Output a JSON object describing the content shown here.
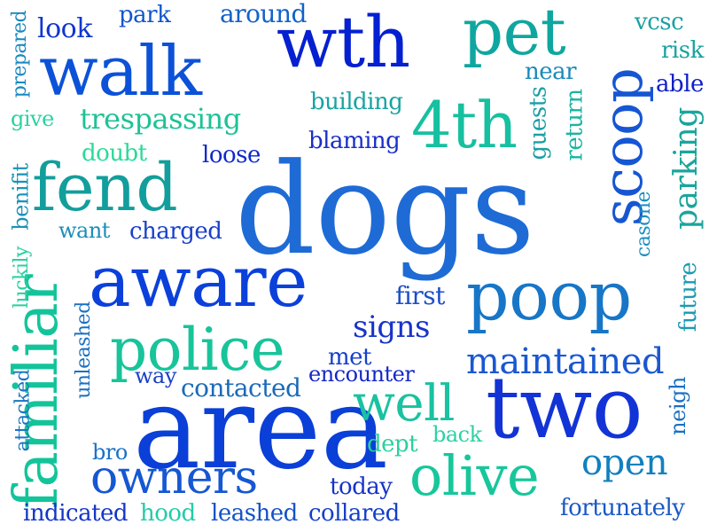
{
  "words": [
    {
      "text": "dogs",
      "color": "#1e6bd6"
    },
    {
      "text": "area",
      "color": "#0a3fd8"
    },
    {
      "text": "aware",
      "color": "#0b40db"
    },
    {
      "text": "walk",
      "color": "#0c52d8"
    },
    {
      "text": "wth",
      "color": "#0520d0"
    },
    {
      "text": "pet",
      "color": "#0fa6a0"
    },
    {
      "text": "two",
      "color": "#1233d6"
    },
    {
      "text": "fend",
      "color": "#129e9c"
    },
    {
      "text": "familiar",
      "color": "#13c49a"
    },
    {
      "text": "police",
      "color": "#18c49a"
    },
    {
      "text": "poop",
      "color": "#1776c7"
    },
    {
      "text": "scoop",
      "color": "#1656d2"
    },
    {
      "text": "4th",
      "color": "#16c0a0"
    },
    {
      "text": "olive",
      "color": "#17c79b"
    },
    {
      "text": "owners",
      "color": "#1657d2"
    },
    {
      "text": "well",
      "color": "#19c2a0"
    },
    {
      "text": "maintained",
      "color": "#1a58d1"
    },
    {
      "text": "open",
      "color": "#1280bf"
    },
    {
      "text": "parking",
      "color": "#1aa59c"
    },
    {
      "text": "trespassing",
      "color": "#1dc297"
    },
    {
      "text": "look",
      "color": "#0f36cf"
    },
    {
      "text": "park",
      "color": "#1055ce"
    },
    {
      "text": "around",
      "color": "#1362c8"
    },
    {
      "text": "vcsc",
      "color": "#1aa0a3"
    },
    {
      "text": "risk",
      "color": "#1aa3a0"
    },
    {
      "text": "able",
      "color": "#1020c8"
    },
    {
      "text": "near",
      "color": "#1a8ab8"
    },
    {
      "text": "guests",
      "color": "#1a9fa6"
    },
    {
      "text": "return",
      "color": "#1ab4a0"
    },
    {
      "text": "building",
      "color": "#1aa3a3"
    },
    {
      "text": "blaming",
      "color": "#1a2ec8"
    },
    {
      "text": "doubt",
      "color": "#2bd99b"
    },
    {
      "text": "loose",
      "color": "#1029c8"
    },
    {
      "text": "give",
      "color": "#2ad2a0"
    },
    {
      "text": "prepared",
      "color": "#1a88c0"
    },
    {
      "text": "benifit",
      "color": "#1a92b8"
    },
    {
      "text": "want",
      "color": "#1a8eb8"
    },
    {
      "text": "charged",
      "color": "#1840cb"
    },
    {
      "text": "casone",
      "color": "#1a8ec0"
    },
    {
      "text": "luckily",
      "color": "#2ad0a0"
    },
    {
      "text": "first",
      "color": "#1a4fc8"
    },
    {
      "text": "signs",
      "color": "#1833ca"
    },
    {
      "text": "future",
      "color": "#1a9ab2"
    },
    {
      "text": "unleashed",
      "color": "#1a6fc2"
    },
    {
      "text": "met",
      "color": "#1440cb"
    },
    {
      "text": "way",
      "color": "#1a40c8"
    },
    {
      "text": "contacted",
      "color": "#1a6ab8"
    },
    {
      "text": "encounter",
      "color": "#1427c8"
    },
    {
      "text": "attacked",
      "color": "#1a75c2"
    },
    {
      "text": "bro",
      "color": "#1a70c8"
    },
    {
      "text": "dept",
      "color": "#2ad09f"
    },
    {
      "text": "back",
      "color": "#2ad2a2"
    },
    {
      "text": "neigh",
      "color": "#1a70c2"
    },
    {
      "text": "today",
      "color": "#1633c8"
    },
    {
      "text": "indicated",
      "color": "#1436c8"
    },
    {
      "text": "hood",
      "color": "#22ccaa"
    },
    {
      "text": "leashed",
      "color": "#1452c8"
    },
    {
      "text": "collared",
      "color": "#1440c8"
    },
    {
      "text": "fortunately",
      "color": "#1a58c6"
    }
  ]
}
